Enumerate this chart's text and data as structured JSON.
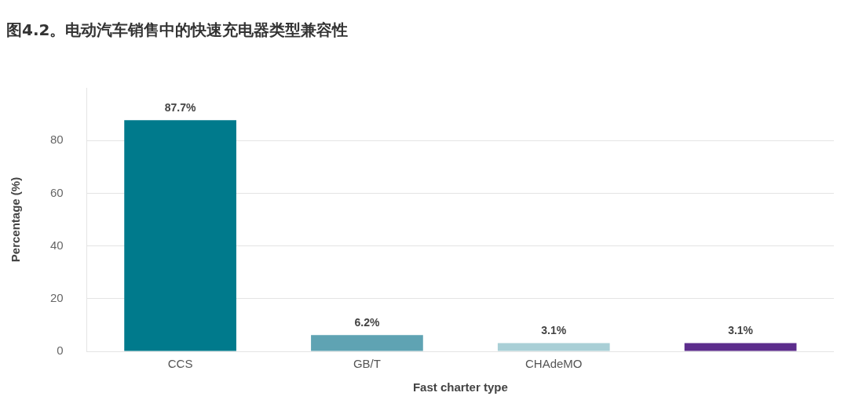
{
  "chart_data": {
    "type": "bar",
    "title": "图4.2。电动汽车销售中的快速充电器类型兼容性",
    "xlabel": "Fast charter type",
    "ylabel": "Percentage (%)",
    "categories": [
      "CCS",
      "GB/T",
      "CHAdeMO",
      null
    ],
    "values": [
      87.7,
      6.2,
      3.1,
      3.1
    ],
    "colors": [
      "#007a8c",
      "#5fa3b3",
      "#a9cfd6",
      "#5c2d8c"
    ],
    "value_labels": [
      "87.7%",
      "6.2%",
      "3.1%",
      "3.1%"
    ],
    "ylim": [
      0,
      100
    ],
    "yticks": [
      0,
      20,
      40,
      60,
      80
    ],
    "grid": "y",
    "legend": false
  }
}
